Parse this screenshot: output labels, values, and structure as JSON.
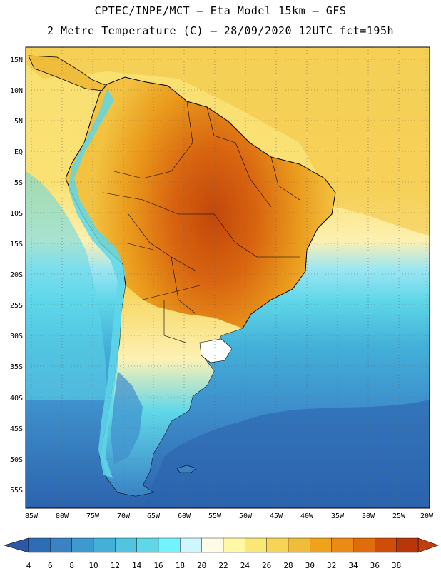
{
  "title_line1": "CPTEC/INPE/MCT –  Eta Model 15km – GFS",
  "title_line2": "2 Metre Temperature (C) – 28/09/2020 12UTC fct=195h",
  "lat_labels": [
    "15N",
    "10N",
    "5N",
    "EQ",
    "5S",
    "10S",
    "15S",
    "20S",
    "25S",
    "30S",
    "35S",
    "40S",
    "45S",
    "50S",
    "55S"
  ],
  "lon_labels": [
    "85W",
    "80W",
    "75W",
    "70W",
    "65W",
    "60W",
    "55W",
    "50W",
    "45W",
    "40W",
    "35W",
    "30W",
    "25W",
    "20W"
  ],
  "colorbar": {
    "labels": [
      "4",
      "6",
      "8",
      "10",
      "12",
      "14",
      "16",
      "18",
      "20",
      "22",
      "24",
      "26",
      "28",
      "30",
      "32",
      "34",
      "36",
      "38"
    ],
    "colors": [
      "#2c6db5",
      "#3a82c4",
      "#3e99cf",
      "#43b0d8",
      "#52c4e0",
      "#5fd7e9",
      "#73f2ff",
      "#cdf6ff",
      "#fffbe6",
      "#fff9a6",
      "#fbe874",
      "#f6d456",
      "#efbd3b",
      "#f0a21a",
      "#eb8a14",
      "#e06c0e",
      "#ce4d08",
      "#b8360a",
      "#2b57a6",
      "#c23e0c"
    ]
  }
}
